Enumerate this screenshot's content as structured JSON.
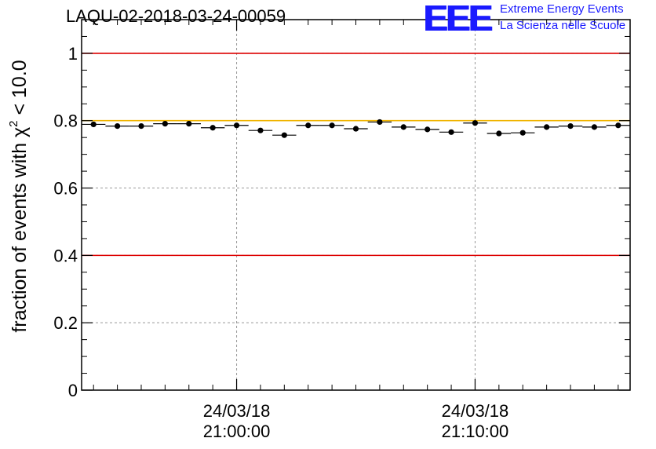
{
  "header": {
    "run_title": "LAQU-02-2018-03-24-00059"
  },
  "logo": {
    "mark": "EEE",
    "line1": "Extreme Energy Events",
    "line2": "La Scienza nelle Scuole",
    "color": "#1a1aff"
  },
  "chart_data": {
    "type": "scatter",
    "title": "LAQU-02-2018-03-24-00059",
    "ylabel_prefix": "fraction of events with ",
    "ylabel_symbol": "χ",
    "ylabel_sup": "2",
    "ylabel_suffix": " < 10.0",
    "xlabel": "",
    "ylim": [
      0,
      1.1
    ],
    "yticks": [
      0,
      0.2,
      0.4,
      0.6,
      0.8,
      1
    ],
    "ytick_labels": [
      "0",
      "0.2",
      "0.4",
      "0.6",
      "0.8",
      "1"
    ],
    "xlim_minutes": [
      -6.5,
      16.5
    ],
    "xtick_labels": [
      {
        "minute": 0,
        "date": "24/03/18",
        "time": "21:00:00"
      },
      {
        "minute": 10,
        "date": "24/03/18",
        "time": "21:10:00"
      }
    ],
    "grid": true,
    "bin_width_minutes": 1,
    "points_minutes": [
      -6,
      -5,
      -4,
      -3,
      -2,
      -1,
      0,
      1,
      2,
      3,
      4,
      5,
      6,
      7,
      8,
      9,
      10,
      11,
      12,
      13,
      14,
      15,
      16
    ],
    "values": [
      0.789,
      0.784,
      0.784,
      0.791,
      0.791,
      0.779,
      0.786,
      0.771,
      0.757,
      0.786,
      0.786,
      0.776,
      0.796,
      0.781,
      0.774,
      0.766,
      0.793,
      0.762,
      0.764,
      0.781,
      0.784,
      0.781,
      0.786
    ],
    "reference_lines": [
      {
        "y": 1.0,
        "color": "#dd0000"
      },
      {
        "y": 0.4,
        "color": "#dd0000"
      },
      {
        "y": 0.8,
        "color": "#f0b400"
      }
    ]
  }
}
